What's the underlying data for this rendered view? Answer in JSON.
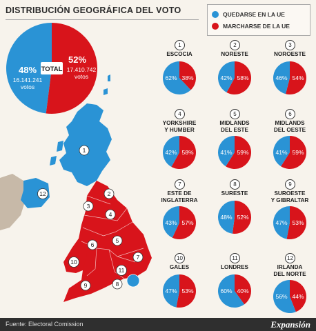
{
  "title": "DISTRIBUCIÓN GEOGRÁFICA DEL VOTO",
  "legend": {
    "remain_label": "QUEDARSE EN LA UE",
    "leave_label": "MARCHARSE DE LA UE"
  },
  "colors": {
    "remain": "#2a93d5",
    "leave": "#d8141b"
  },
  "total": {
    "label": "TOTAL",
    "remain_pct": "48%",
    "remain_votes": "16.141.241",
    "remain_votes_unit": "votos",
    "leave_pct": "52%",
    "leave_votes": "17.410.742",
    "leave_votes_unit": "votos"
  },
  "chart_data": {
    "type": "pie",
    "total": {
      "remain": 48,
      "leave": 52,
      "remain_votes": 16141241,
      "leave_votes": 17410742
    },
    "regions": [
      {
        "num": "1",
        "name_lines": [
          "ESCOCIA"
        ],
        "remain": 62,
        "leave": 38,
        "remain_label": "62%",
        "leave_label": "38%"
      },
      {
        "num": "2",
        "name_lines": [
          "NORESTE"
        ],
        "remain": 42,
        "leave": 58,
        "remain_label": "42%",
        "leave_label": "58%"
      },
      {
        "num": "3",
        "name_lines": [
          "NOROESTE"
        ],
        "remain": 46,
        "leave": 54,
        "remain_label": "46%",
        "leave_label": "54%"
      },
      {
        "num": "4",
        "name_lines": [
          "YORKSHIRE",
          "Y HUMBER"
        ],
        "remain": 42,
        "leave": 58,
        "remain_label": "42%",
        "leave_label": "58%"
      },
      {
        "num": "5",
        "name_lines": [
          "MIDLANDS",
          "DEL ESTE"
        ],
        "remain": 41,
        "leave": 59,
        "remain_label": "41%",
        "leave_label": "59%"
      },
      {
        "num": "6",
        "name_lines": [
          "MIDLANDS",
          "DEL OESTE"
        ],
        "remain": 41,
        "leave": 59,
        "remain_label": "41%",
        "leave_label": "59%"
      },
      {
        "num": "7",
        "name_lines": [
          "ESTE DE",
          "INGLATERRA"
        ],
        "remain": 43,
        "leave": 57,
        "remain_label": "43%",
        "leave_label": "57%"
      },
      {
        "num": "8",
        "name_lines": [
          "SURESTE"
        ],
        "remain": 48,
        "leave": 52,
        "remain_label": "48%",
        "leave_label": "52%"
      },
      {
        "num": "9",
        "name_lines": [
          "SUROESTE",
          "Y GIBRALTAR"
        ],
        "remain": 47,
        "leave": 53,
        "remain_label": "47%",
        "leave_label": "53%"
      },
      {
        "num": "10",
        "name_lines": [
          "GALES"
        ],
        "remain": 47,
        "leave": 53,
        "remain_label": "47%",
        "leave_label": "53%"
      },
      {
        "num": "11",
        "name_lines": [
          "LONDRES"
        ],
        "remain": 60,
        "leave": 40,
        "remain_label": "60%",
        "leave_label": "40%"
      },
      {
        "num": "12",
        "name_lines": [
          "IRLANDA",
          "DEL NORTE"
        ],
        "remain": 56,
        "leave": 44,
        "remain_label": "56%",
        "leave_label": "44%"
      }
    ]
  },
  "map": {
    "region_numbers": [
      "1",
      "2",
      "3",
      "4",
      "5",
      "6",
      "7",
      "8",
      "9",
      "10",
      "11",
      "12"
    ]
  },
  "footer": {
    "source": "Fuente: Electoral Comission",
    "brand": "Expansión"
  }
}
